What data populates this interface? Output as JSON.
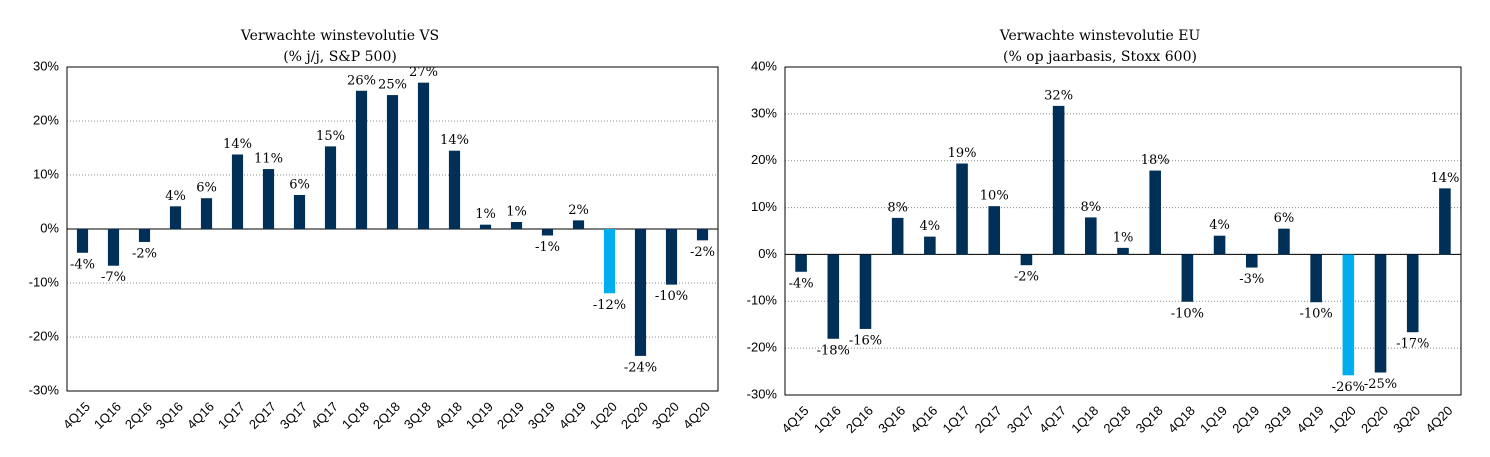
{
  "chart_data": [
    {
      "type": "bar",
      "title": "Verwachte winstevolutie VS",
      "subtitle": "(% j/j, S&P 500)",
      "categories": [
        "4Q15",
        "1Q16",
        "2Q16",
        "3Q16",
        "4Q16",
        "1Q17",
        "2Q17",
        "3Q17",
        "4Q17",
        "1Q18",
        "2Q18",
        "3Q18",
        "4Q18",
        "1Q19",
        "2Q19",
        "3Q19",
        "4Q19",
        "1Q20",
        "2Q20",
        "3Q20",
        "4Q20"
      ],
      "values": [
        -4.4,
        -6.8,
        -2.4,
        4.2,
        5.7,
        13.8,
        11.1,
        6.3,
        15.3,
        25.6,
        24.8,
        27.1,
        14.5,
        0.8,
        1.3,
        -1.2,
        1.6,
        -11.9,
        -23.5,
        -10.3,
        -2.1
      ],
      "value_labels": [
        "-4%",
        "-7%",
        "-2%",
        "4%",
        "6%",
        "14%",
        "11%",
        "6%",
        "15%",
        "26%",
        "25%",
        "27%",
        "14%",
        "1%",
        "1%",
        "-1%",
        "2%",
        "-12%",
        "-24%",
        "-10%",
        "-2%"
      ],
      "colors": [
        "#003057",
        "#003057",
        "#003057",
        "#003057",
        "#003057",
        "#003057",
        "#003057",
        "#003057",
        "#003057",
        "#003057",
        "#003057",
        "#003057",
        "#003057",
        "#003057",
        "#003057",
        "#003057",
        "#003057",
        "#00aeef",
        "#003057",
        "#003057",
        "#003057"
      ],
      "ylim": [
        -30,
        30
      ],
      "yticks": [
        {
          "value": -30,
          "label": "-30%"
        },
        {
          "value": -20,
          "label": "-20%"
        },
        {
          "value": -10,
          "label": "-10%"
        },
        {
          "value": 0,
          "label": "0%"
        },
        {
          "value": 10,
          "label": "10%"
        },
        {
          "value": 20,
          "label": "20%"
        },
        {
          "value": 30,
          "label": "30%"
        }
      ],
      "grid": true
    },
    {
      "type": "bar",
      "title": "Verwachte winstevolutie EU",
      "subtitle": "(% op jaarbasis, Stoxx 600)",
      "categories": [
        "4Q15",
        "1Q16",
        "2Q16",
        "3Q16",
        "4Q16",
        "1Q17",
        "2Q17",
        "3Q17",
        "4Q17",
        "1Q18",
        "2Q18",
        "3Q18",
        "4Q18",
        "1Q19",
        "2Q19",
        "3Q19",
        "4Q19",
        "1Q20",
        "2Q20",
        "3Q20",
        "4Q20"
      ],
      "values": [
        -3.7,
        -18.0,
        -15.9,
        7.8,
        3.8,
        19.4,
        10.3,
        -2.3,
        31.7,
        7.9,
        1.4,
        17.9,
        -10.1,
        4.0,
        -2.8,
        5.5,
        -10.2,
        -25.8,
        -25.2,
        -16.6,
        14.1
      ],
      "value_labels": [
        "-4%",
        "-18%",
        "-16%",
        "8%",
        "4%",
        "19%",
        "10%",
        "-2%",
        "32%",
        "8%",
        "1%",
        "18%",
        "-10%",
        "4%",
        "-3%",
        "6%",
        "-10%",
        "-26%",
        "-25%",
        "-17%",
        "14%"
      ],
      "colors": [
        "#003057",
        "#003057",
        "#003057",
        "#003057",
        "#003057",
        "#003057",
        "#003057",
        "#003057",
        "#003057",
        "#003057",
        "#003057",
        "#003057",
        "#003057",
        "#003057",
        "#003057",
        "#003057",
        "#003057",
        "#00aeef",
        "#003057",
        "#003057",
        "#003057"
      ],
      "ylim": [
        -30,
        40
      ],
      "yticks": [
        {
          "value": -30,
          "label": "-30%"
        },
        {
          "value": -20,
          "label": "-20%"
        },
        {
          "value": -10,
          "label": "-10%"
        },
        {
          "value": 0,
          "label": "0%"
        },
        {
          "value": 10,
          "label": "10%"
        },
        {
          "value": 20,
          "label": "20%"
        },
        {
          "value": 30,
          "label": "30%"
        },
        {
          "value": 40,
          "label": "40%"
        }
      ],
      "grid": true
    }
  ]
}
